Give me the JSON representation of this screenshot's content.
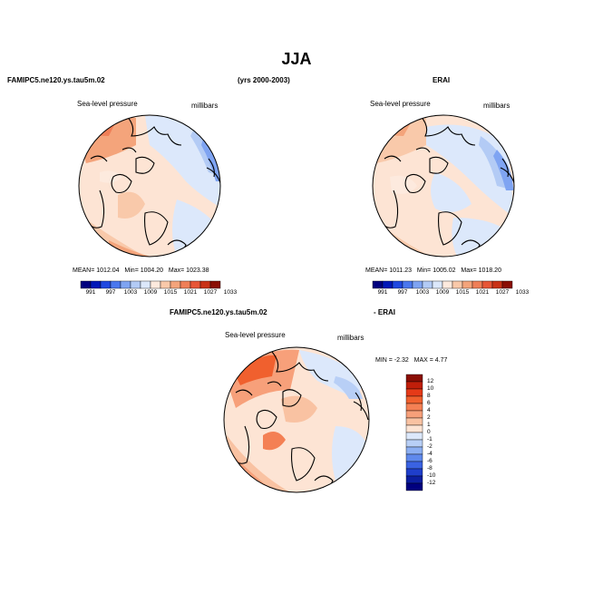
{
  "title": "JJA",
  "header_left": "FAMIPC5.ne120.ys.tau5m.02",
  "header_center": "(yrs 2000-2003)",
  "header_right": "ERAI",
  "panels": {
    "model": {
      "field": "Sea-level pressure",
      "units": "millibars",
      "mean_label": "MEAN=",
      "mean": "1012.04",
      "min_label": "Min=",
      "min": "1004.20",
      "max_label": "Max=",
      "max": "1023.38"
    },
    "obs": {
      "field": "Sea-level pressure",
      "units": "millibars",
      "mean_label": "MEAN=",
      "mean": "1011.23",
      "min_label": "Min=",
      "min": "1005.02",
      "max_label": "Max=",
      "max": "1018.20"
    },
    "diff": {
      "title_left": "FAMIPC5.ne120.ys.tau5m.02",
      "title_right": "- ERAI",
      "field": "Sea-level pressure",
      "units": "millibars",
      "min_label": "MIN =",
      "min": "-2.32",
      "max_label": "MAX =",
      "max": "4.77"
    }
  },
  "colorbar_abs": {
    "labels": [
      "991",
      "997",
      "1003",
      "1009",
      "1015",
      "1021",
      "1027",
      "1033"
    ],
    "colors": [
      "#00007f",
      "#0018b8",
      "#1f48e0",
      "#4a78ee",
      "#7fa4f2",
      "#b3cbf5",
      "#dce8fb",
      "#fdeade",
      "#f9c9aa",
      "#f4a47b",
      "#ef7f58",
      "#e75637",
      "#c93217",
      "#8a0e05"
    ]
  },
  "colorbar_diff": {
    "labels": [
      "12",
      "10",
      "8",
      "6",
      "4",
      "2",
      "1",
      "0",
      "-1",
      "-2",
      "-4",
      "-6",
      "-8",
      "-10",
      "-12"
    ],
    "colors": [
      "#8a0e05",
      "#c01e0a",
      "#e53a18",
      "#f0602e",
      "#f48054",
      "#f7a07a",
      "#f9c2a2",
      "#fde4d4",
      "#dce8fb",
      "#b8cff6",
      "#8caff2",
      "#5f89ec",
      "#3a62e2",
      "#1f3ecb",
      "#0c1ea0",
      "#00007f"
    ]
  },
  "colors": {
    "land_outline": "#000000",
    "ocean_light_blue": "#dce8fb",
    "light_orange": "#fde4d4",
    "orange": "#f4a47b",
    "blue": "#7fa4f2"
  }
}
